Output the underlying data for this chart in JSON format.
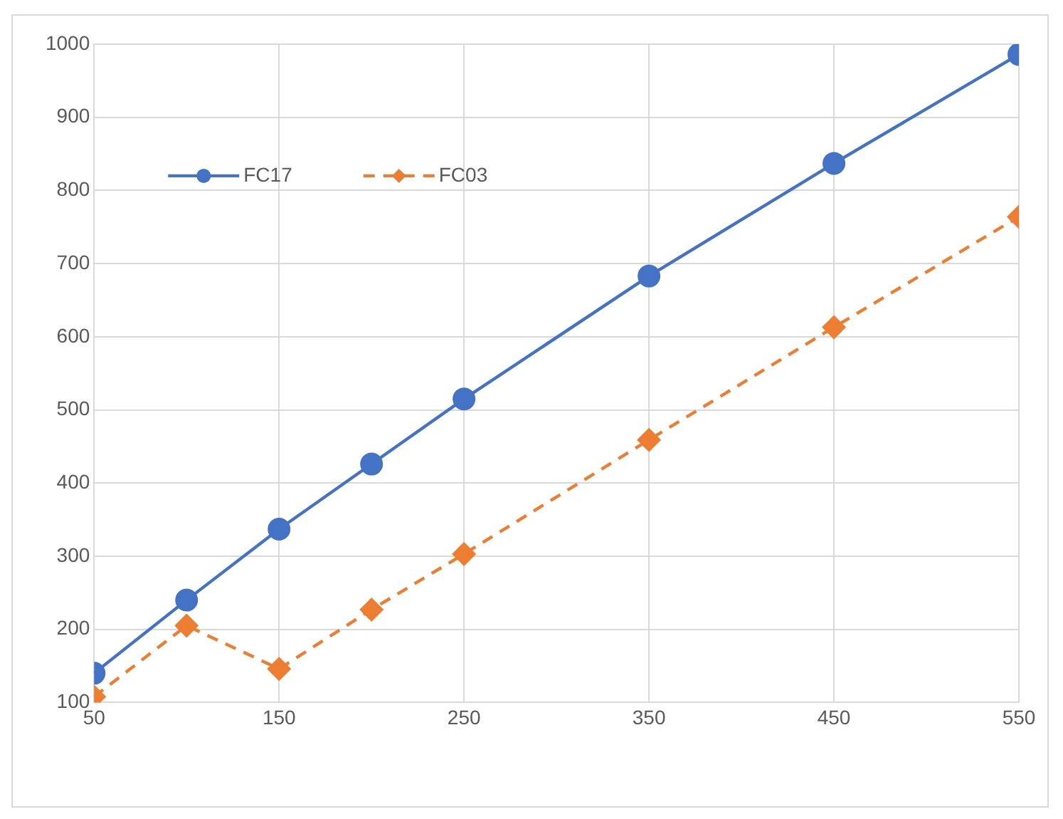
{
  "chart_data": {
    "type": "line",
    "x": [
      50,
      100,
      150,
      200,
      250,
      350,
      450,
      550
    ],
    "series": [
      {
        "name": "FC17",
        "color": "#4472c4",
        "marker": "circle",
        "line_style": "solid",
        "values": [
          140,
          240,
          337,
          426,
          515,
          683,
          837,
          986
        ]
      },
      {
        "name": "FC03",
        "color": "#ed7d31",
        "marker": "diamond",
        "line_style": "dashed",
        "values": [
          108,
          205,
          146,
          227,
          303,
          459,
          613,
          764
        ]
      }
    ],
    "xlim": [
      50,
      550
    ],
    "xticks": [
      50,
      150,
      250,
      350,
      450,
      550
    ],
    "ylim": [
      100,
      1000
    ],
    "yticks": [
      100,
      200,
      300,
      400,
      500,
      600,
      700,
      800,
      900,
      1000
    ],
    "grid": true,
    "legend": "top left"
  }
}
